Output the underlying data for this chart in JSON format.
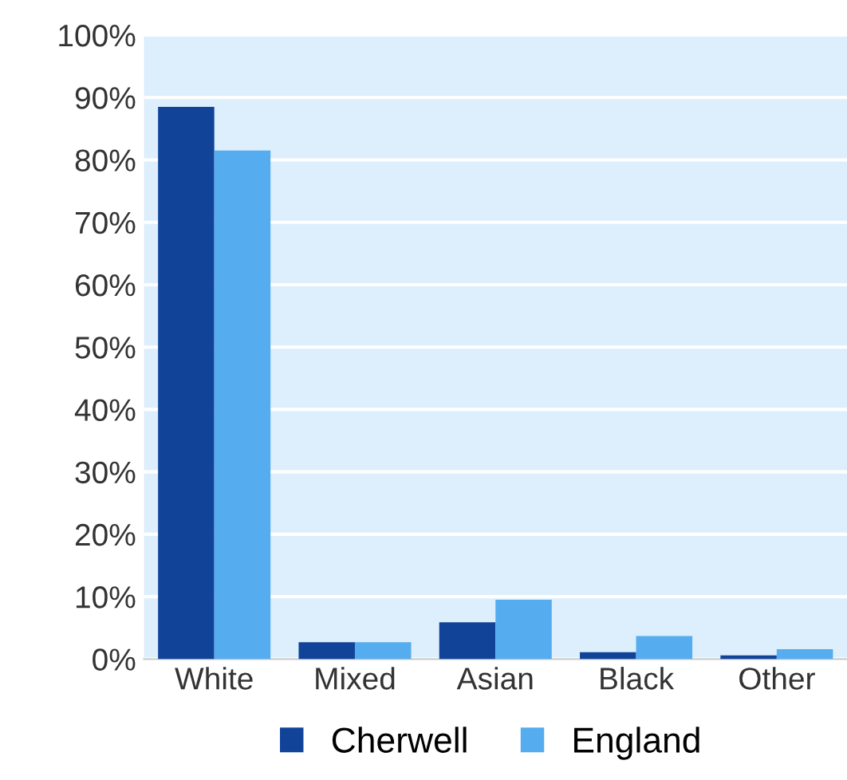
{
  "chart_data": {
    "type": "bar",
    "categories": [
      "White",
      "Mixed",
      "Asian",
      "Black",
      "Other"
    ],
    "series": [
      {
        "name": "Cherwell",
        "color": "#114499",
        "values": [
          88.5,
          2.7,
          5.9,
          1.1,
          0.6
        ]
      },
      {
        "name": "England",
        "color": "#55acee",
        "values": [
          81.5,
          2.7,
          9.5,
          3.7,
          1.6
        ]
      }
    ],
    "ylim": [
      0,
      100
    ],
    "yticks": [
      {
        "value": 0,
        "label": "0%"
      },
      {
        "value": 10,
        "label": "10%"
      },
      {
        "value": 20,
        "label": "20%"
      },
      {
        "value": 30,
        "label": "30%"
      },
      {
        "value": 40,
        "label": "40%"
      },
      {
        "value": 50,
        "label": "50%"
      },
      {
        "value": 60,
        "label": "60%"
      },
      {
        "value": 70,
        "label": "70%"
      },
      {
        "value": 80,
        "label": "80%"
      },
      {
        "value": 90,
        "label": "90%"
      },
      {
        "value": 100,
        "label": "100%"
      }
    ],
    "grid": "y",
    "legend": "bottom"
  }
}
